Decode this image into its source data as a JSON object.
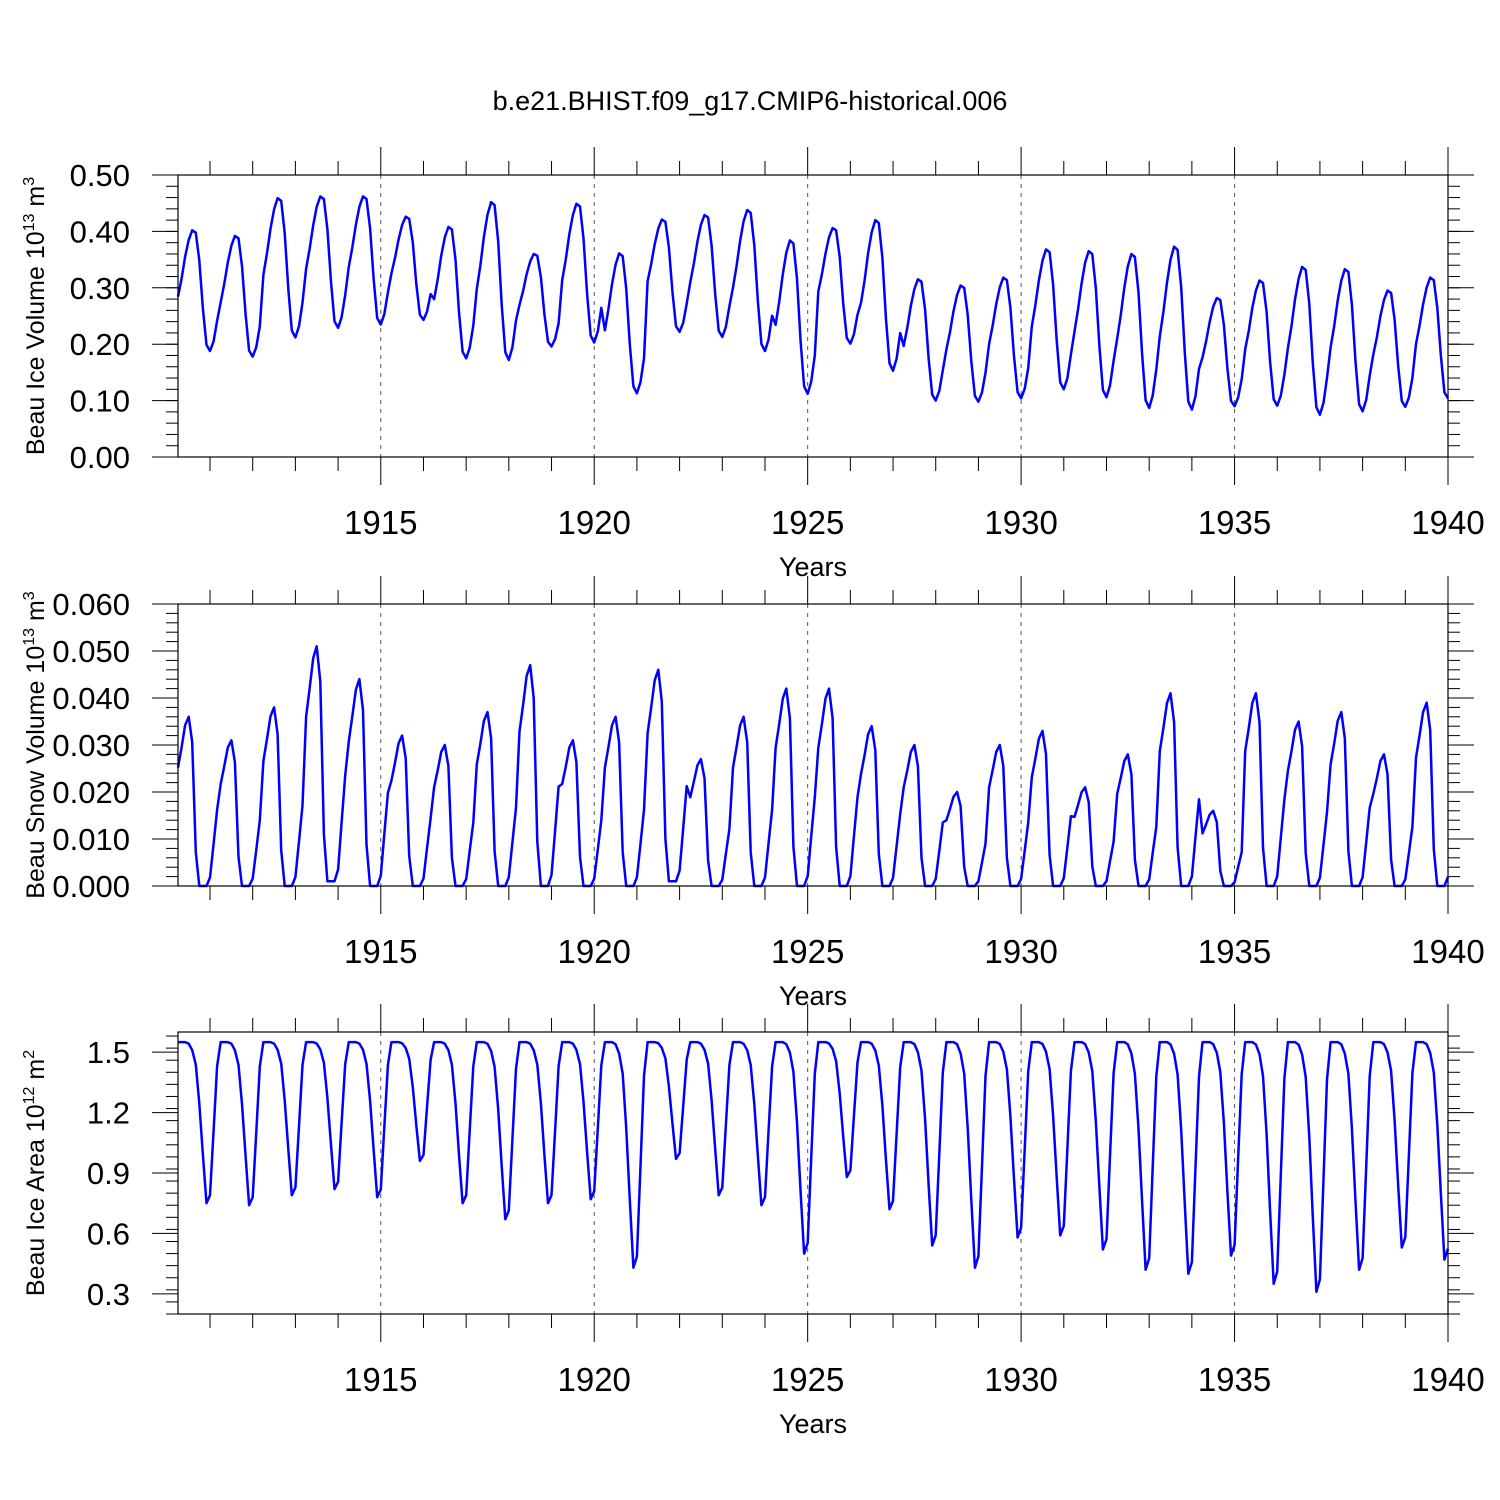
{
  "title": "b.e21.BHIST.f09_g17.CMIP6-historical.006",
  "colors": {
    "series": "#0000ff",
    "axes": "#000000",
    "grid": "#555555"
  },
  "chart_data": [
    {
      "type": "line",
      "ylabel": {
        "main": "Beau Ice Volume 10",
        "sup1": "13",
        "mid": " m",
        "sup2": "3"
      },
      "xlabel": "Years",
      "xlim": [
        1910.25,
        1940.0
      ],
      "ylim": [
        0.0,
        0.5
      ],
      "xticks": [
        1915,
        1920,
        1925,
        1930,
        1935,
        1940
      ],
      "xtick_labels": [
        "1915",
        "1920",
        "1925",
        "1930",
        "1935",
        "1940"
      ],
      "yticks": [
        0.0,
        0.1,
        0.2,
        0.3,
        0.4,
        0.5
      ],
      "ytick_labels": [
        "0.00",
        "0.10",
        "0.20",
        "0.30",
        "0.40",
        "0.50"
      ],
      "series": [
        {
          "name": "Beau Ice Volume",
          "peaks": [
            0.402,
            0.392,
            0.459,
            0.462,
            0.462,
            0.426,
            0.408,
            0.452,
            0.36,
            0.449,
            0.361,
            0.421,
            0.429,
            0.438,
            0.384,
            0.406,
            0.42,
            0.315,
            0.304,
            0.318,
            0.368,
            0.365,
            0.36,
            0.373,
            0.282,
            0.313,
            0.337,
            0.333,
            0.295,
            0.318
          ],
          "troughs": [
            0.188,
            0.178,
            0.212,
            0.229,
            0.235,
            0.243,
            0.175,
            0.172,
            0.196,
            0.203,
            0.113,
            0.222,
            0.213,
            0.188,
            0.112,
            0.201,
            0.153,
            0.1,
            0.098,
            0.104,
            0.12,
            0.106,
            0.087,
            0.084,
            0.09,
            0.091,
            0.075,
            0.081,
            0.089,
            0.104
          ]
        }
      ]
    },
    {
      "type": "line",
      "ylabel": {
        "main": "Beau Snow Volume 10",
        "sup1": "13",
        "mid": " m",
        "sup2": "3"
      },
      "xlabel": "Years",
      "xlim": [
        1910.25,
        1940.0
      ],
      "ylim": [
        0.0,
        0.06
      ],
      "xticks": [
        1915,
        1920,
        1925,
        1930,
        1935,
        1940
      ],
      "xtick_labels": [
        "1915",
        "1920",
        "1925",
        "1930",
        "1935",
        "1940"
      ],
      "yticks": [
        0.0,
        0.01,
        0.02,
        0.03,
        0.04,
        0.05,
        0.06
      ],
      "ytick_labels": [
        "0.000",
        "0.010",
        "0.020",
        "0.030",
        "0.040",
        "0.050",
        "0.060"
      ],
      "series": [
        {
          "name": "Beau Snow Volume",
          "peaks": [
            0.036,
            0.031,
            0.038,
            0.051,
            0.044,
            0.032,
            0.03,
            0.037,
            0.047,
            0.031,
            0.036,
            0.046,
            0.027,
            0.036,
            0.042,
            0.042,
            0.034,
            0.03,
            0.02,
            0.03,
            0.033,
            0.021,
            0.028,
            0.041,
            0.016,
            0.041,
            0.035,
            0.037,
            0.028,
            0.039
          ],
          "troughs": [
            0.0,
            0.0,
            0.0,
            0.001,
            0.0,
            0.0,
            0.0,
            0.0,
            0.0,
            0.0,
            0.0,
            0.001,
            0.0,
            0.0,
            0.0,
            0.0,
            0.0,
            0.0,
            0.0,
            0.0,
            0.0,
            0.0,
            0.0,
            0.0,
            0.0,
            0.0,
            0.0,
            0.0,
            0.0,
            0.0
          ]
        }
      ]
    },
    {
      "type": "line",
      "ylabel": {
        "main": "Beau Ice Area 10",
        "sup1": "12",
        "mid": " m",
        "sup2": "2"
      },
      "xlabel": "Years",
      "xlim": [
        1910.25,
        1940.0
      ],
      "ylim": [
        0.2,
        1.6
      ],
      "xticks": [
        1915,
        1920,
        1925,
        1930,
        1935,
        1940
      ],
      "xtick_labels": [
        "1915",
        "1920",
        "1925",
        "1930",
        "1935",
        "1940"
      ],
      "yticks": [
        0.3,
        0.6,
        0.9,
        1.2,
        1.5
      ],
      "ytick_labels": [
        "0.3",
        "0.6",
        "0.9",
        "1.2",
        "1.5"
      ],
      "series": [
        {
          "name": "Beau Ice Area",
          "peaks": [
            1.55,
            1.55,
            1.55,
            1.55,
            1.55,
            1.55,
            1.55,
            1.55,
            1.55,
            1.55,
            1.55,
            1.55,
            1.55,
            1.55,
            1.55,
            1.55,
            1.55,
            1.55,
            1.55,
            1.55,
            1.55,
            1.55,
            1.55,
            1.55,
            1.55,
            1.55,
            1.55,
            1.55,
            1.55,
            1.55
          ],
          "troughs": [
            0.75,
            0.74,
            0.79,
            0.82,
            0.78,
            0.96,
            0.75,
            0.67,
            0.75,
            0.77,
            0.43,
            0.97,
            0.79,
            0.74,
            0.5,
            0.88,
            0.72,
            0.54,
            0.43,
            0.58,
            0.59,
            0.52,
            0.42,
            0.4,
            0.49,
            0.35,
            0.31,
            0.42,
            0.53,
            0.47
          ]
        }
      ]
    }
  ]
}
